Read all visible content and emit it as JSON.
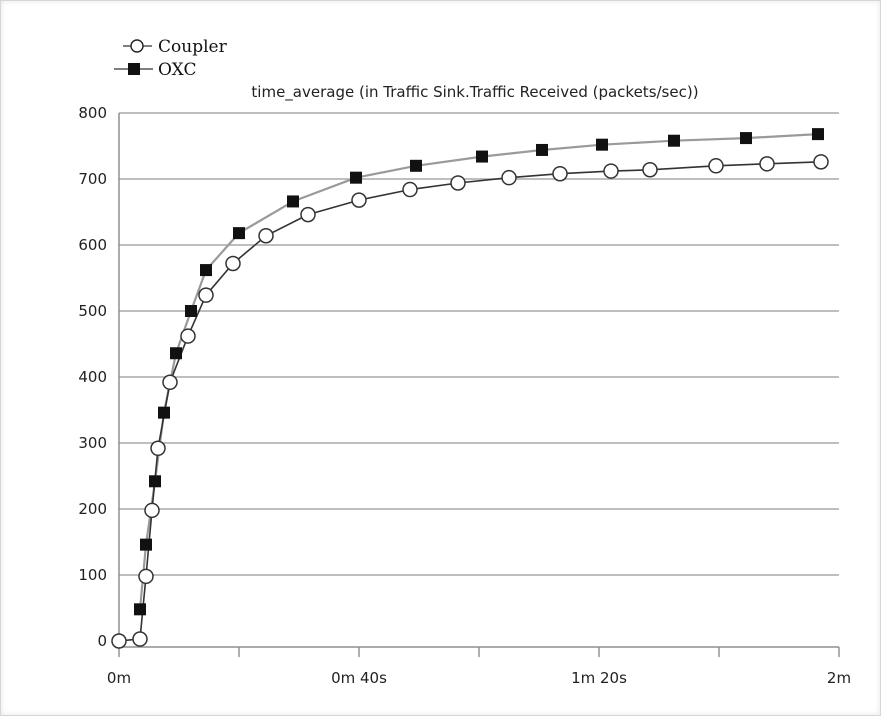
{
  "chart_data": {
    "type": "line",
    "title": "time_average (in Traffic Sink.Traffic Received (packets/sec))",
    "xlabel": "",
    "ylabel": "",
    "xlim": [
      0,
      120
    ],
    "ylim": [
      0,
      800
    ],
    "grid": true,
    "legend_position": "top-left",
    "y_ticks": [
      {
        "value": 0,
        "label": "0"
      },
      {
        "value": 100,
        "label": "100"
      },
      {
        "value": 200,
        "label": "200"
      },
      {
        "value": 300,
        "label": "300"
      },
      {
        "value": 400,
        "label": "400"
      },
      {
        "value": 500,
        "label": "500"
      },
      {
        "value": 600,
        "label": "600"
      },
      {
        "value": 700,
        "label": "700"
      },
      {
        "value": 800,
        "label": "800"
      }
    ],
    "x_ticks": [
      {
        "value": 0,
        "label": "0m"
      },
      {
        "value": 20,
        "label": ""
      },
      {
        "value": 40,
        "label": "0m 40s"
      },
      {
        "value": 60,
        "label": ""
      },
      {
        "value": 80,
        "label": "1m 20s"
      },
      {
        "value": 100,
        "label": ""
      },
      {
        "value": 120,
        "label": "2m"
      }
    ],
    "series": [
      {
        "name": "Coupler",
        "marker": "open-circle",
        "color": "#333333",
        "line_color": "#333333",
        "points": [
          [
            0,
            0
          ],
          [
            3.5,
            3
          ],
          [
            4.5,
            98
          ],
          [
            5.5,
            198
          ],
          [
            6.5,
            292
          ],
          [
            8.5,
            392
          ],
          [
            11.5,
            462
          ],
          [
            14.5,
            524
          ],
          [
            19,
            572
          ],
          [
            24.5,
            614
          ],
          [
            31.5,
            646
          ],
          [
            40,
            668
          ],
          [
            48.5,
            684
          ],
          [
            56.5,
            694
          ],
          [
            65,
            702
          ],
          [
            73.5,
            708
          ],
          [
            82,
            712
          ],
          [
            88.5,
            714
          ],
          [
            99.5,
            720
          ],
          [
            108,
            723
          ],
          [
            117,
            726
          ]
        ]
      },
      {
        "name": "OXC",
        "marker": "filled-square",
        "color": "#111111",
        "line_color": "#9a9a9a",
        "points": [
          [
            3.5,
            48
          ],
          [
            4.5,
            146
          ],
          [
            6,
            242
          ],
          [
            7.5,
            346
          ],
          [
            9.5,
            436
          ],
          [
            12,
            500
          ],
          [
            14.5,
            562
          ],
          [
            20,
            618
          ],
          [
            29,
            666
          ],
          [
            39.5,
            702
          ],
          [
            49.5,
            720
          ],
          [
            60.5,
            734
          ],
          [
            70.5,
            744
          ],
          [
            80.5,
            752
          ],
          [
            92.5,
            758
          ],
          [
            104.5,
            762
          ],
          [
            116.5,
            768
          ]
        ]
      }
    ]
  }
}
